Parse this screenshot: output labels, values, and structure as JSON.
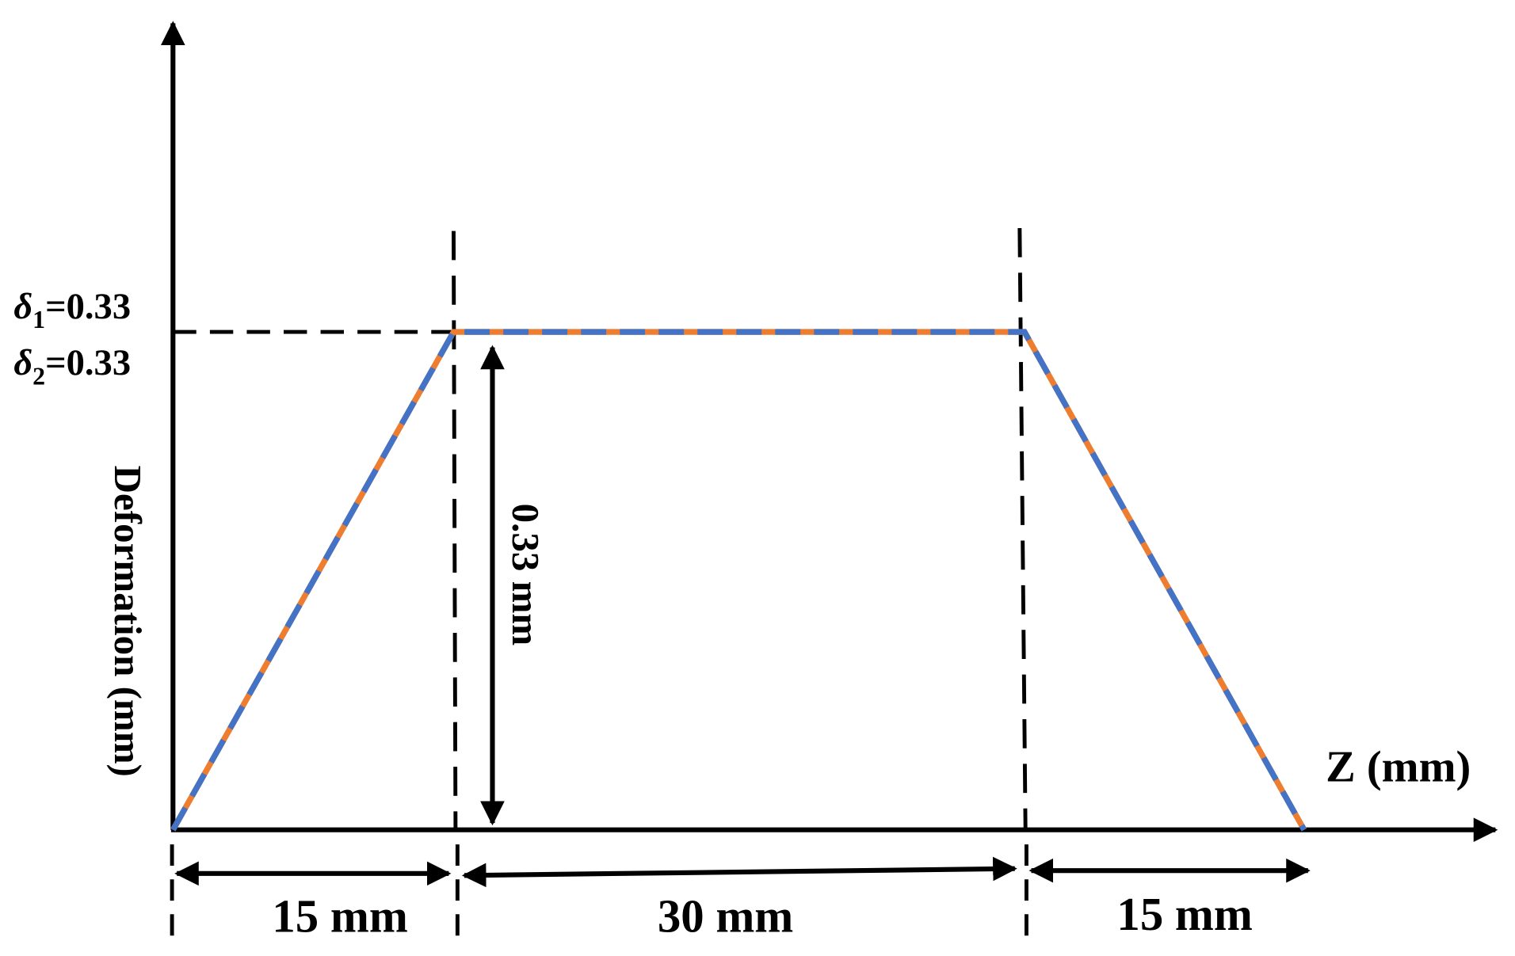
{
  "y_axis_label": "Deformation (mm)",
  "x_axis_label": "Z (mm)",
  "delta_labels": [
    {
      "symbol": "δ",
      "subscript": "1",
      "value": "=0.33"
    },
    {
      "symbol": "δ",
      "subscript": "2",
      "value": "=0.33"
    }
  ],
  "height_label": "0.33 mm",
  "segment_labels": [
    "15 mm",
    "30 mm",
    "15 mm"
  ]
}
